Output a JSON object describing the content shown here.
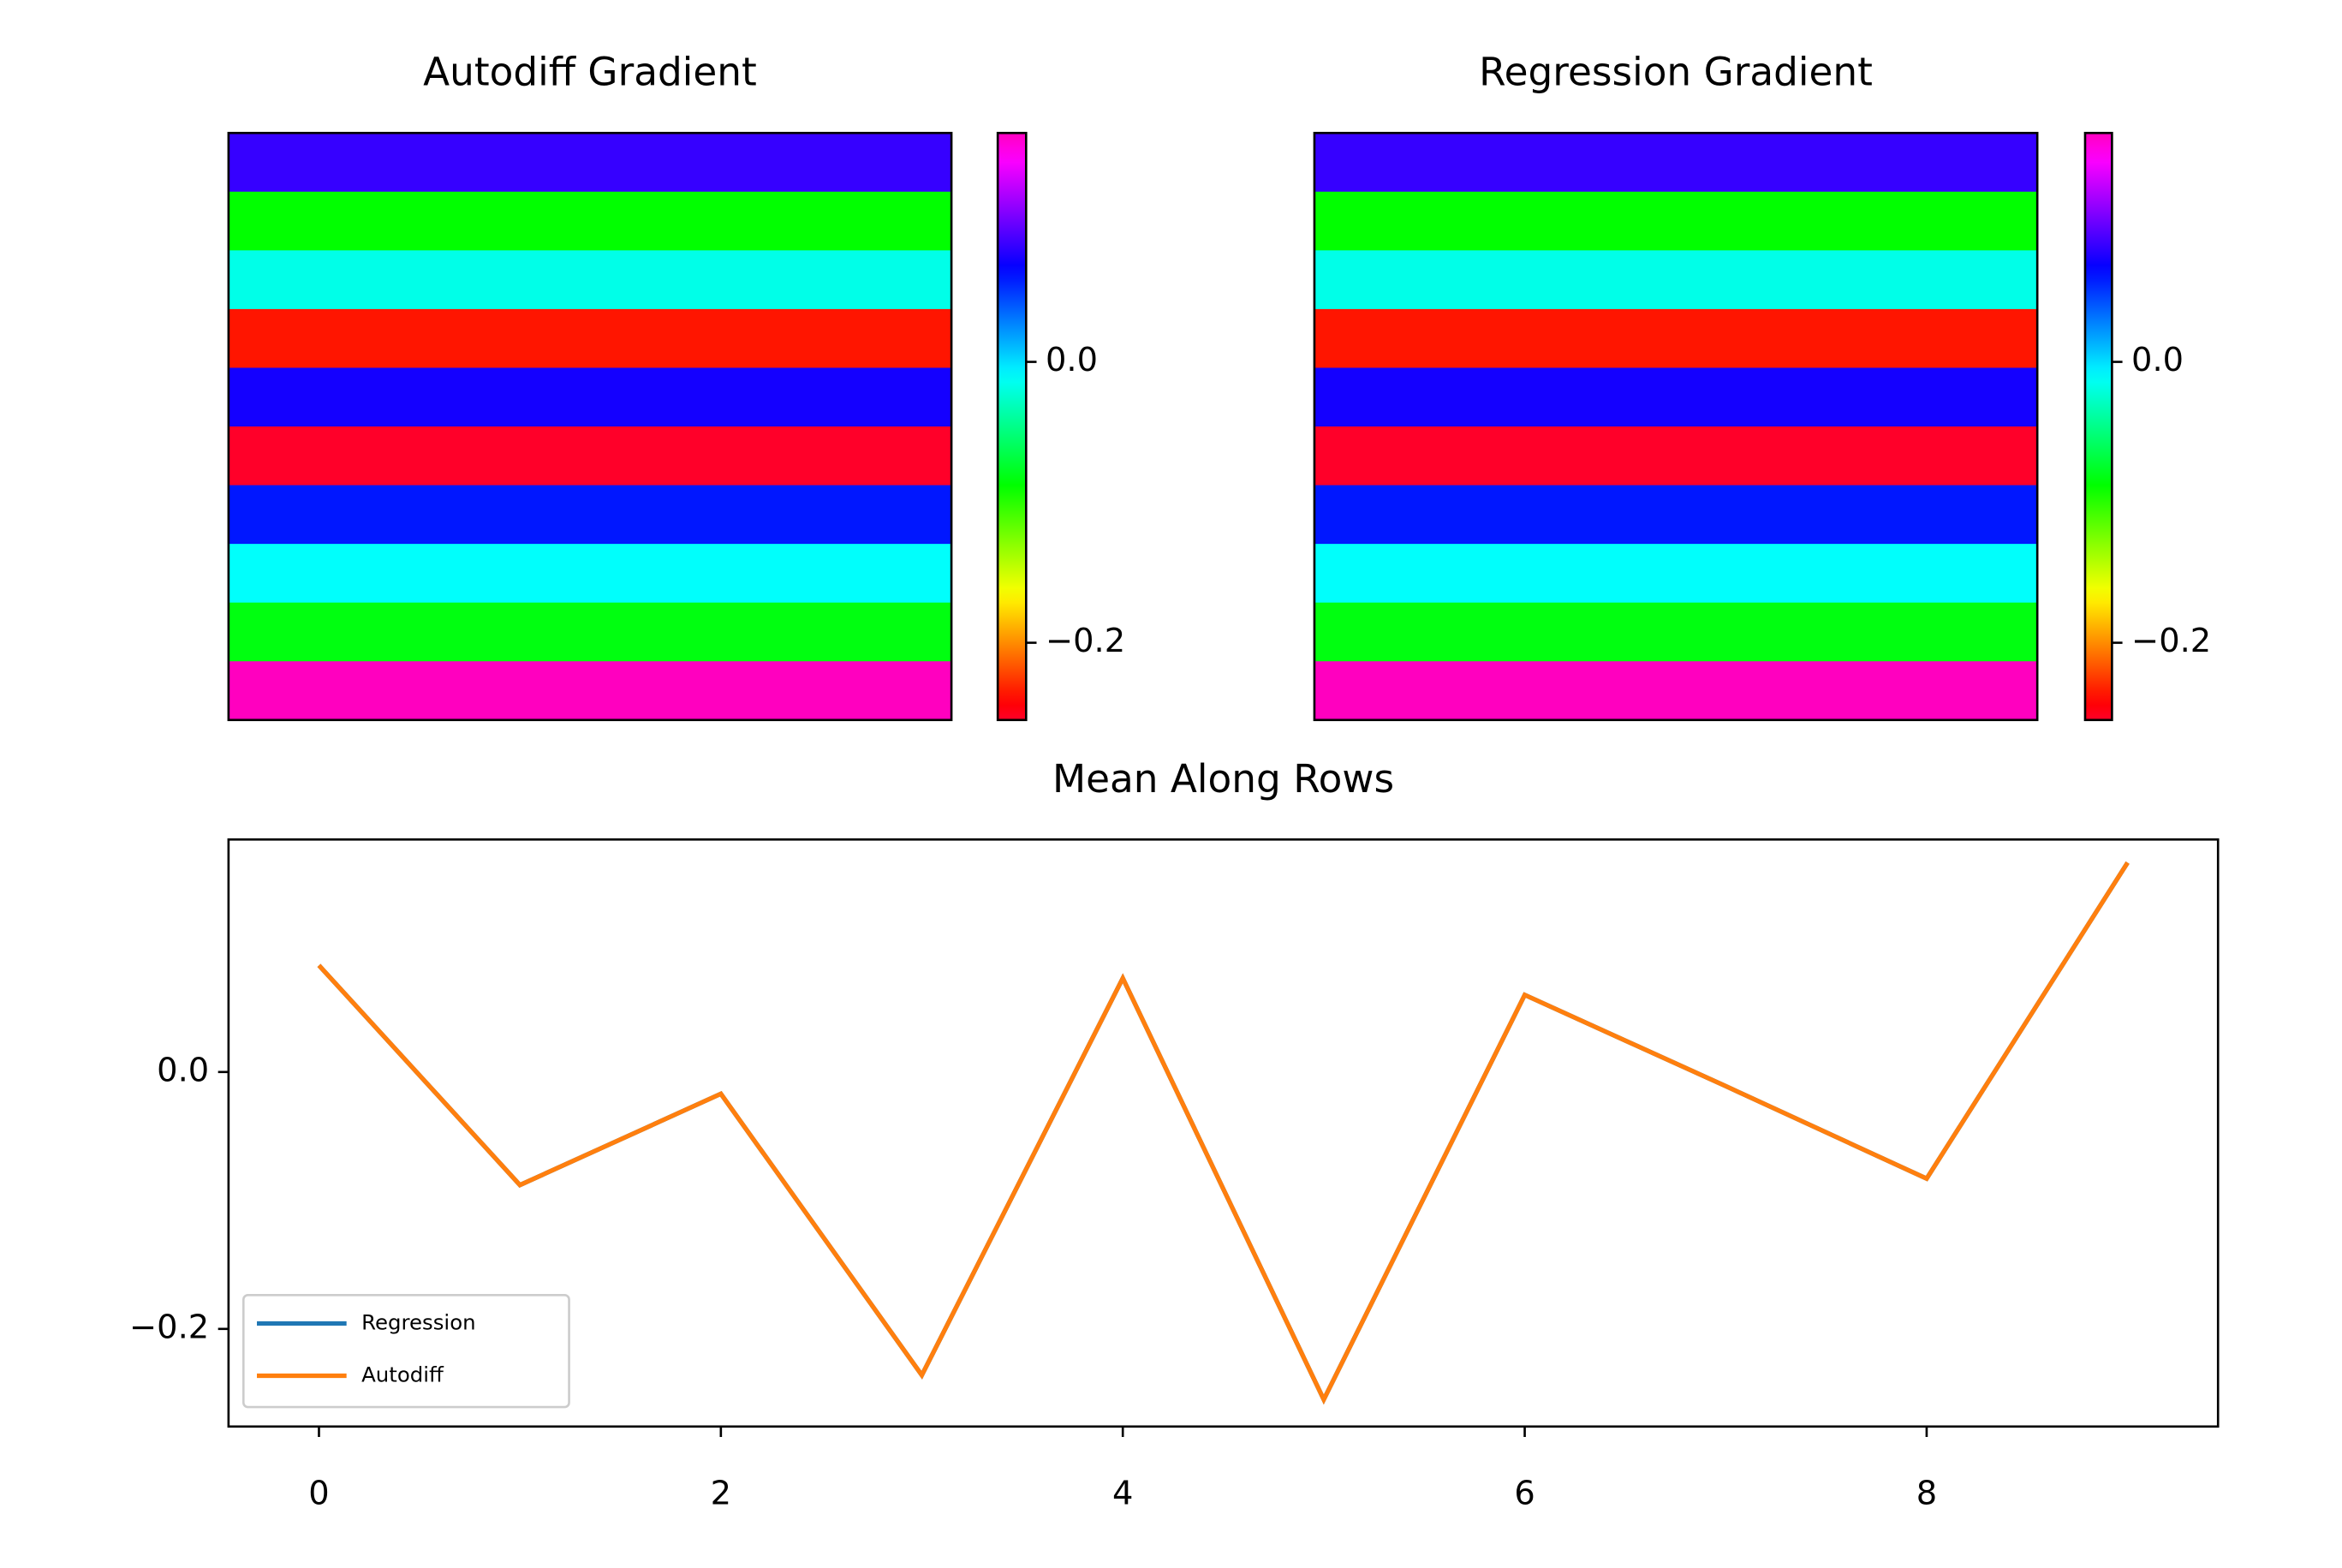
{
  "chart_data": [
    {
      "type": "heatmap",
      "title": "Autodiff Gradient",
      "cmap": "gist_rainbow",
      "z": [
        [
          0.083
        ],
        [
          -0.088
        ],
        [
          -0.017
        ],
        [
          -0.236
        ],
        [
          0.073
        ],
        [
          -0.255
        ],
        [
          0.06
        ],
        [
          -0.011
        ],
        [
          -0.083
        ],
        [
          0.163
        ]
      ],
      "clim": [
        -0.255,
        0.163
      ],
      "cbar_ticks": [
        {
          "value": 0.0,
          "label": "0.0"
        },
        {
          "value": -0.2,
          "label": "−0.2"
        }
      ]
    },
    {
      "type": "heatmap",
      "title": "Regression Gradient",
      "cmap": "gist_rainbow",
      "z": [
        [
          0.083
        ],
        [
          -0.088
        ],
        [
          -0.017
        ],
        [
          -0.236
        ],
        [
          0.073
        ],
        [
          -0.255
        ],
        [
          0.06
        ],
        [
          -0.011
        ],
        [
          -0.083
        ],
        [
          0.163
        ]
      ],
      "clim": [
        -0.255,
        0.163
      ],
      "cbar_ticks": [
        {
          "value": 0.0,
          "label": "0.0"
        },
        {
          "value": -0.2,
          "label": "−0.2"
        }
      ]
    },
    {
      "type": "line",
      "title": "Mean Along Rows",
      "x": [
        0,
        1,
        2,
        3,
        4,
        5,
        6,
        7,
        8,
        9
      ],
      "series": [
        {
          "name": "Regression",
          "color": "#1f77b4",
          "values": [
            0.083,
            -0.088,
            -0.017,
            -0.236,
            0.073,
            -0.255,
            0.06,
            -0.011,
            -0.083,
            0.163
          ]
        },
        {
          "name": "Autodiff",
          "color": "#ff7f0e",
          "values": [
            0.083,
            -0.088,
            -0.017,
            -0.236,
            0.073,
            -0.255,
            0.06,
            -0.011,
            -0.083,
            0.163
          ]
        }
      ],
      "xlim": [
        -0.45,
        9.45
      ],
      "ylim": [
        -0.276,
        0.181
      ],
      "xticks": [
        0,
        2,
        4,
        6,
        8
      ],
      "yticks": [
        {
          "value": 0.0,
          "label": "0.0"
        },
        {
          "value": -0.2,
          "label": "−0.2"
        }
      ],
      "legend": "lower left"
    }
  ]
}
